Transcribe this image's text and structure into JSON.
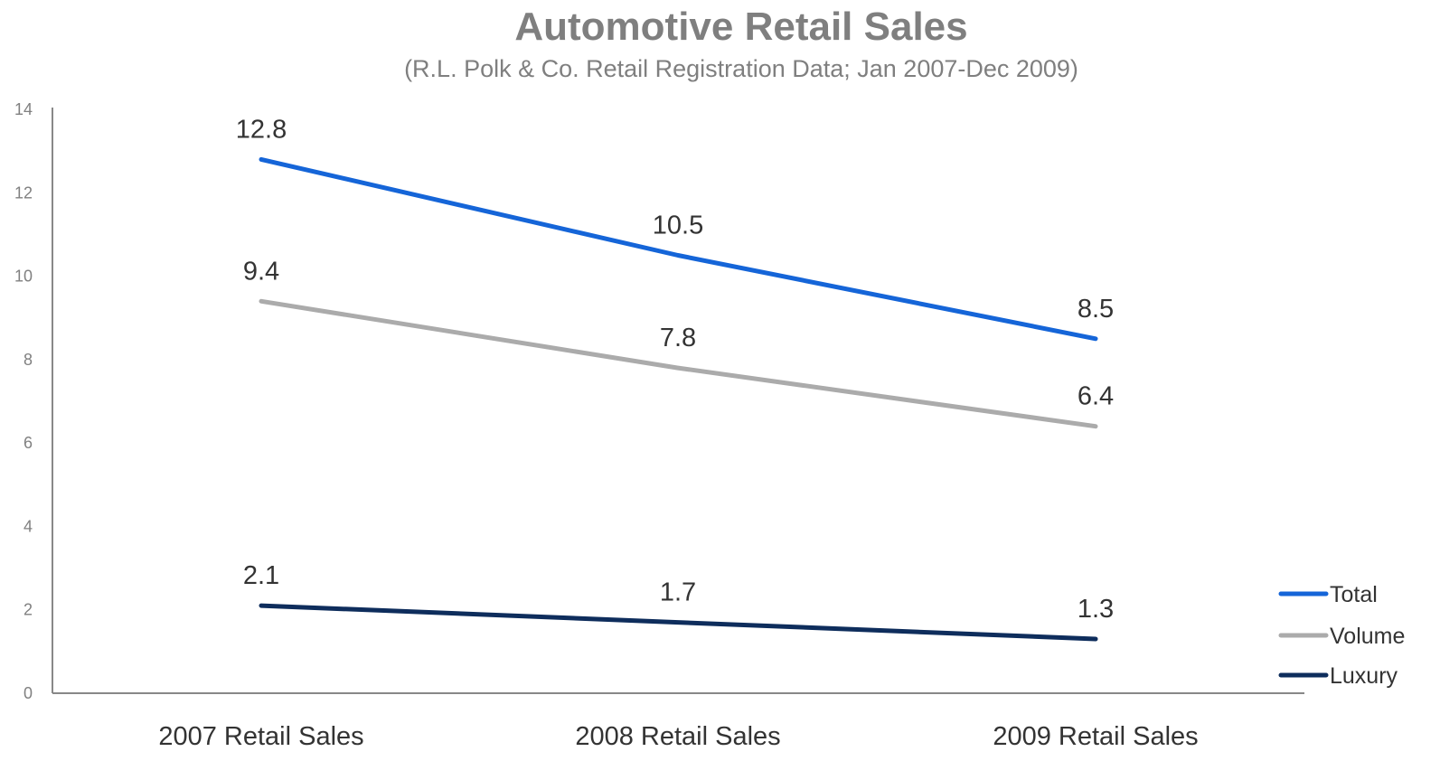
{
  "chart_data": {
    "type": "line",
    "title": "Automotive Retail Sales",
    "subtitle": "(R.L. Polk & Co. Retail Registration Data; Jan 2007-Dec 2009)",
    "xlabel": "",
    "ylabel": "",
    "categories": [
      "2007 Retail Sales",
      "2008 Retail Sales",
      "2009 Retail Sales"
    ],
    "ylim": [
      0,
      14
    ],
    "yticks": [
      0,
      2,
      4,
      6,
      8,
      10,
      12,
      14
    ],
    "grid": false,
    "legend_position": "right-bottom",
    "series": [
      {
        "name": "Total",
        "values": [
          12.8,
          10.5,
          8.5
        ],
        "labels": [
          "12.8",
          "10.5",
          "8.5"
        ],
        "color": "#1565D8"
      },
      {
        "name": "Volume",
        "values": [
          9.4,
          7.8,
          6.4
        ],
        "labels": [
          "9.4",
          "7.8",
          "6.4"
        ],
        "color": "#ABABAB"
      },
      {
        "name": "Luxury",
        "values": [
          2.1,
          1.7,
          1.3
        ],
        "labels": [
          "2.1",
          "1.7",
          "1.3"
        ],
        "color": "#0E2D5C"
      }
    ]
  },
  "colors": {
    "title": "#7F7F7F",
    "subtitle": "#7F7F7F",
    "axis": "#888888",
    "ytick": "#808080",
    "xtick": "#333333",
    "data_label": "#333333",
    "legend_text": "#333333"
  }
}
